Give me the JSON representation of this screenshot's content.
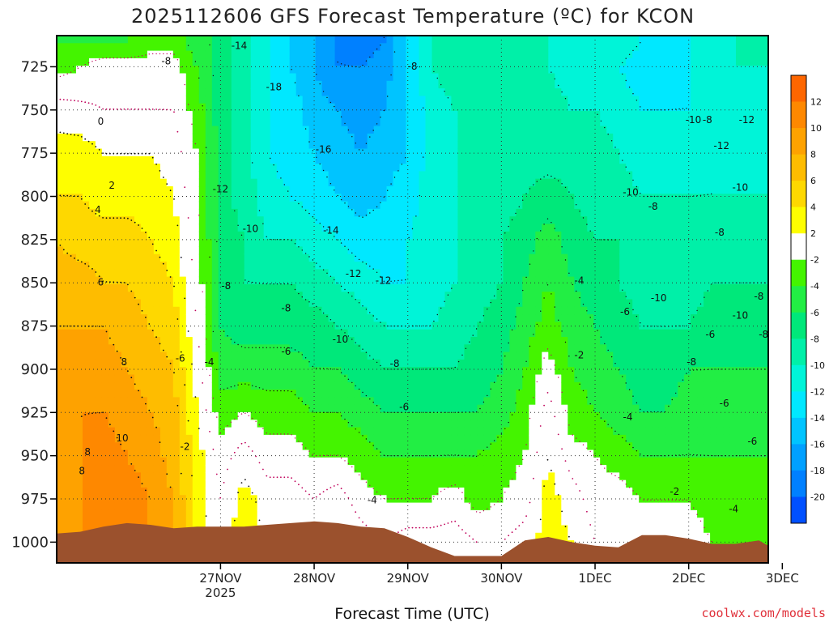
{
  "chart_data": {
    "type": "heatmap",
    "title": "2025112606 GFS Forecast Temperature (ºC) for KCON",
    "xlabel": "Forecast Time (UTC)",
    "ylabel": "",
    "x_ticks": [
      {
        "label": "27NOV",
        "sublabel": "2025",
        "day": 1.0
      },
      {
        "label": "28NOV",
        "day": 2.0
      },
      {
        "label": "29NOV",
        "day": 3.0
      },
      {
        "label": "30NOV",
        "day": 4.0
      },
      {
        "label": "1DEC",
        "day": 5.0
      },
      {
        "label": "2DEC",
        "day": 6.0
      },
      {
        "label": "3DEC",
        "day": 7.0
      }
    ],
    "xlim": [
      -0.75,
      6.85
    ],
    "y_ticks": [
      "725",
      "750",
      "775",
      "800",
      "825",
      "850",
      "875",
      "900",
      "925",
      "950",
      "975",
      "1000"
    ],
    "ylim": [
      1012,
      707
    ],
    "colorbar": {
      "ticks": [
        "12",
        "10",
        "8",
        "6",
        "4",
        "2",
        "-2",
        "-4",
        "-6",
        "-8",
        "-10",
        "-12",
        "-14",
        "-16",
        "-18",
        "-20"
      ],
      "colors": [
        "#fe6600",
        "#fe8800",
        "#fea200",
        "#febc00",
        "#fed800",
        "#fefe00",
        "#ffffff",
        "#44f400",
        "#22ee44",
        "#00e87a",
        "#00f0a8",
        "#00f4d8",
        "#00e8ff",
        "#00c4ff",
        "#00a0ff",
        "#0080ff",
        "#0050ff"
      ]
    },
    "temperature_grid": {
      "pressure_levels": [
        710,
        725,
        750,
        775,
        800,
        825,
        850,
        875,
        900,
        925,
        950,
        975,
        1000
      ],
      "days": [
        -0.75,
        -0.5,
        -0.25,
        0.0,
        0.25,
        0.5,
        0.75,
        1.0,
        1.25,
        1.5,
        1.75,
        2.0,
        2.25,
        2.5,
        2.75,
        3.0,
        3.25,
        3.5,
        3.75,
        4.0,
        4.25,
        4.5,
        4.75,
        5.0,
        5.25,
        5.5,
        5.75,
        6.0,
        6.25,
        6.5,
        6.75,
        6.85
      ],
      "values": [
        [
          -4,
          -4,
          -4,
          -4,
          -3,
          -3,
          -5,
          -7,
          -9,
          -12,
          -14,
          -16,
          -18,
          -19,
          -18,
          -14,
          -10,
          -9,
          -8,
          -9,
          -9,
          -10,
          -11,
          -10,
          -11,
          -12,
          -13,
          -12,
          -11,
          -10,
          -9,
          -9
        ],
        [
          -3,
          -2,
          -1,
          -1,
          -1,
          -1,
          -4,
          -7,
          -9,
          -12,
          -14,
          -16,
          -18,
          -18,
          -17,
          -14,
          -10,
          -9,
          -8,
          -9,
          -9,
          -10,
          -11,
          -11,
          -12,
          -13,
          -13,
          -12,
          -11,
          -10,
          -10,
          -10
        ],
        [
          1,
          0.5,
          0,
          0,
          0,
          0,
          -3,
          -7,
          -9,
          -12,
          -13,
          -15,
          -16,
          -17,
          -16,
          -14,
          -11,
          -10,
          -9,
          -9,
          -9,
          -9,
          -10,
          -10,
          -11,
          -12,
          -12,
          -12,
          -11,
          -10,
          -10,
          -10
        ],
        [
          3,
          3,
          2,
          2,
          2,
          1,
          -2,
          -7,
          -9,
          -12,
          -13,
          -14,
          -15,
          -16,
          -15,
          -14,
          -11,
          -10,
          -9,
          -9,
          -9,
          -9,
          -9,
          -9,
          -10,
          -11,
          -11,
          -11,
          -10,
          -10,
          -10,
          -10
        ],
        [
          4,
          4,
          3,
          3,
          3,
          2,
          -2,
          -7,
          -9,
          -11,
          -12,
          -13,
          -14,
          -15,
          -14,
          -13,
          -11,
          -10,
          -9,
          -9,
          -8,
          -7,
          -8,
          -9,
          -9,
          -10,
          -10,
          -10,
          -10,
          -10,
          -10,
          -10
        ],
        [
          6,
          5,
          5,
          5,
          4,
          3,
          -1,
          -7,
          -8,
          -10,
          -10,
          -11,
          -12,
          -13,
          -13,
          -12,
          -11,
          -10,
          -9,
          -8,
          -7,
          -5,
          -7,
          -8,
          -8,
          -9,
          -9,
          -9,
          -9,
          -9,
          -9,
          -9
        ],
        [
          7,
          7,
          6,
          6,
          5,
          4,
          -1,
          -6,
          -8,
          -8,
          -8,
          -9,
          -10,
          -11,
          -12,
          -12,
          -11,
          -10,
          -9,
          -8,
          -6,
          -4,
          -6,
          -7,
          -8,
          -9,
          -10,
          -9,
          -8,
          -8,
          -8,
          -8
        ],
        [
          8,
          8,
          8,
          7,
          6,
          5,
          0,
          -6,
          -7,
          -7,
          -7,
          -7,
          -8,
          -9,
          -10,
          -10,
          -10,
          -9,
          -8,
          -7,
          -5,
          -3,
          -5,
          -6,
          -7,
          -8,
          -8,
          -8,
          -7,
          -7,
          -7,
          -7
        ],
        [
          9,
          9,
          9,
          8,
          7,
          6,
          1,
          -5,
          -5,
          -5,
          -5,
          -6,
          -6,
          -7,
          -8,
          -8,
          -8,
          -8,
          -7,
          -6,
          -4,
          -1,
          -4,
          -5,
          -6,
          -7,
          -7,
          -6,
          -6,
          -6,
          -6,
          -6
        ],
        [
          9,
          10,
          10,
          9,
          8,
          7,
          2,
          -3,
          -2,
          -3,
          -3,
          -4,
          -4,
          -5,
          -6,
          -6,
          -6,
          -6,
          -6,
          -5,
          -3,
          1,
          -3,
          -4,
          -5,
          -6,
          -6,
          -5,
          -5,
          -5,
          -5,
          -5
        ],
        [
          9,
          10,
          11,
          10,
          9,
          7,
          3,
          -1,
          1,
          -1,
          -1,
          -2,
          -2,
          -3,
          -4,
          -4,
          -4,
          -4,
          -4,
          -3,
          -2,
          2,
          -1,
          -2,
          -3,
          -4,
          -4,
          -4,
          -4,
          -4,
          -4,
          -4
        ],
        [
          9,
          10,
          11,
          11,
          10,
          8,
          3,
          0,
          3,
          1,
          1,
          0,
          1,
          -1,
          -2,
          -2,
          -2,
          -1,
          -3,
          -2,
          -1,
          3,
          1,
          -1,
          -1,
          -2,
          -2,
          -2,
          -3,
          -3,
          -3,
          -3
        ],
        [
          9,
          10,
          11,
          11,
          10,
          8,
          3,
          1,
          3,
          2,
          2,
          1,
          2,
          1,
          0,
          1,
          1,
          1,
          0,
          0,
          1,
          3,
          2,
          0,
          0,
          -1,
          -1,
          -1,
          -2,
          -2,
          -2,
          -2
        ]
      ]
    },
    "surface_pressure": {
      "days": [
        -0.75,
        -0.5,
        -0.25,
        0.0,
        0.25,
        0.5,
        0.75,
        1.0,
        1.25,
        1.5,
        1.75,
        2.0,
        2.25,
        2.5,
        2.75,
        3.0,
        3.25,
        3.5,
        3.75,
        4.0,
        4.25,
        4.5,
        4.75,
        5.0,
        5.25,
        5.5,
        5.75,
        6.0,
        6.25,
        6.5,
        6.75,
        6.85
      ],
      "values": [
        995,
        994,
        991,
        989,
        990,
        992,
        991,
        991,
        991,
        990,
        989,
        988,
        989,
        991,
        992,
        997,
        1003,
        1008,
        1008,
        1008,
        999,
        997,
        1000,
        1002,
        1003,
        996,
        996,
        998,
        1001,
        1001,
        999,
        1002
      ]
    },
    "contour_labels": [
      {
        "text": "-8",
        "day": 0.42,
        "p": 722
      },
      {
        "text": "-14",
        "day": 1.2,
        "p": 713
      },
      {
        "text": "-18",
        "day": 1.57,
        "p": 737
      },
      {
        "text": "-8",
        "day": 3.05,
        "p": 725
      },
      {
        "text": "0",
        "day": -0.28,
        "p": 757
      },
      {
        "text": "2",
        "day": -0.16,
        "p": 794
      },
      {
        "text": "4",
        "day": -0.31,
        "p": 808
      },
      {
        "text": "6",
        "day": -0.28,
        "p": 850
      },
      {
        "text": "8",
        "day": -0.03,
        "p": 896
      },
      {
        "text": "10",
        "day": -0.05,
        "p": 940
      },
      {
        "text": "8",
        "day": -0.42,
        "p": 948
      },
      {
        "text": "8",
        "day": -0.48,
        "p": 959
      },
      {
        "text": "-16",
        "day": 2.1,
        "p": 773
      },
      {
        "text": "-12",
        "day": 1.0,
        "p": 796
      },
      {
        "text": "-10",
        "day": 1.32,
        "p": 819
      },
      {
        "text": "-14",
        "day": 2.18,
        "p": 820
      },
      {
        "text": "-12",
        "day": 2.42,
        "p": 845
      },
      {
        "text": "-12",
        "day": 2.74,
        "p": 849
      },
      {
        "text": "-8",
        "day": 1.06,
        "p": 852
      },
      {
        "text": "-8",
        "day": 1.7,
        "p": 865
      },
      {
        "text": "-10",
        "day": 2.28,
        "p": 883
      },
      {
        "text": "-6",
        "day": 0.57,
        "p": 894
      },
      {
        "text": "-4",
        "day": 0.88,
        "p": 896
      },
      {
        "text": "-6",
        "day": 1.7,
        "p": 890
      },
      {
        "text": "-8",
        "day": 2.86,
        "p": 897
      },
      {
        "text": "-6",
        "day": 2.96,
        "p": 922
      },
      {
        "text": "-2",
        "day": 0.62,
        "p": 945
      },
      {
        "text": "-4",
        "day": 2.62,
        "p": 976
      },
      {
        "text": "-4",
        "day": 4.83,
        "p": 849
      },
      {
        "text": "-2",
        "day": 4.83,
        "p": 892
      },
      {
        "text": "-6",
        "day": 5.32,
        "p": 867
      },
      {
        "text": "-4",
        "day": 5.35,
        "p": 928
      },
      {
        "text": "-10",
        "day": 5.38,
        "p": 798
      },
      {
        "text": "-8",
        "day": 5.62,
        "p": 806
      },
      {
        "text": "-10",
        "day": 5.68,
        "p": 859
      },
      {
        "text": "-8",
        "day": 6.03,
        "p": 896
      },
      {
        "text": "-6",
        "day": 6.38,
        "p": 920
      },
      {
        "text": "-2",
        "day": 5.85,
        "p": 971
      },
      {
        "text": "-4",
        "day": 6.48,
        "p": 981
      },
      {
        "text": "-10",
        "day": 6.05,
        "p": 756
      },
      {
        "text": "-12",
        "day": 6.35,
        "p": 771
      },
      {
        "text": "-8",
        "day": 6.33,
        "p": 821
      },
      {
        "text": "-10",
        "day": 6.55,
        "p": 869
      },
      {
        "text": "-8",
        "day": 6.75,
        "p": 858
      },
      {
        "text": "-8",
        "day": 7.4,
        "p": 756
      },
      {
        "text": "-12",
        "day": 7.82,
        "p": 756
      },
      {
        "text": "-10",
        "day": 7.75,
        "p": 795
      },
      {
        "text": "-6",
        "day": 7.43,
        "p": 880
      },
      {
        "text": "-8",
        "day": 8.0,
        "p": 880
      },
      {
        "text": "-6",
        "day": 7.88,
        "p": 942
      }
    ]
  },
  "credit": "coolwx.com/models"
}
